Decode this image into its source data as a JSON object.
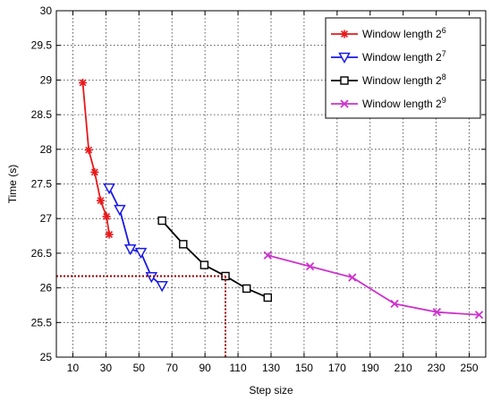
{
  "chart_data": {
    "type": "line",
    "xlabel": "Step size",
    "ylabel": "Time (s)",
    "xlim": [
      0,
      260
    ],
    "ylim": [
      25,
      30
    ],
    "xticks": [
      10,
      30,
      50,
      70,
      90,
      110,
      130,
      150,
      170,
      190,
      210,
      230,
      250
    ],
    "yticks": [
      25,
      25.5,
      26,
      26.5,
      27,
      27.5,
      28,
      28.5,
      29,
      29.5,
      30
    ],
    "grid": true,
    "legend_position": "top-right",
    "series": [
      {
        "name": "Window length 2",
        "name_exponent": "6",
        "color": "#e8191b",
        "marker": "asterisk",
        "x": [
          16,
          19.6,
          23.2,
          26.8,
          30.4,
          32
        ],
        "y": [
          28.96,
          27.99,
          27.67,
          27.26,
          27.03,
          26.77
        ]
      },
      {
        "name": "Window length 2",
        "name_exponent": "7",
        "color": "#1a1ae6",
        "marker": "triangle-down",
        "x": [
          32,
          38.4,
          44.8,
          51.2,
          57.6,
          64
        ],
        "y": [
          27.44,
          27.13,
          26.56,
          26.51,
          26.16,
          26.03
        ]
      },
      {
        "name": "Window length 2",
        "name_exponent": "8",
        "color": "#000000",
        "marker": "square",
        "x": [
          64,
          76.8,
          89.6,
          102.4,
          115.2,
          128
        ],
        "y": [
          26.97,
          26.63,
          26.33,
          26.17,
          25.99,
          25.86
        ]
      },
      {
        "name": "Window length 2",
        "name_exponent": "9",
        "color": "#cc33cc",
        "marker": "x",
        "x": [
          128,
          153.6,
          179.2,
          204.8,
          230.4,
          256
        ],
        "y": [
          26.47,
          26.31,
          26.15,
          25.77,
          25.65,
          25.61
        ]
      }
    ],
    "reference_lines": {
      "color": "#990000",
      "style": "dotted",
      "point": [
        102.4,
        26.17
      ]
    }
  }
}
